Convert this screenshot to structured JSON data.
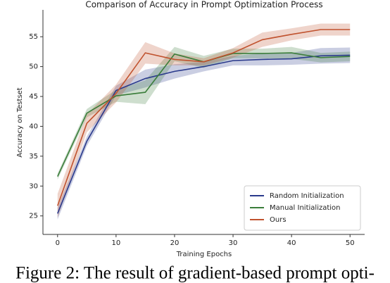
{
  "chart_data": {
    "type": "line",
    "title": "Comparison of Accuracy in Prompt Optimization Process",
    "x_label": "Training Epochs",
    "y_label": "Accuracy on Testset",
    "x": [
      0,
      5,
      10,
      15,
      20,
      25,
      30,
      35,
      40,
      45,
      50
    ],
    "series": [
      {
        "name": "Random Initialization",
        "color": "#2a3a8c",
        "values": [
          25.4,
          37.5,
          46,
          48,
          49.2,
          50,
          51,
          51.2,
          51.3,
          51.8,
          51.9
        ],
        "error": [
          1,
          0.8,
          0.8,
          1.5,
          1.2,
          0.8,
          0.8,
          1,
          1,
          1.3,
          1.3
        ]
      },
      {
        "name": "Manual Initialization",
        "color": "#3a7d3a",
        "values": [
          31.6,
          42.2,
          45.1,
          45.7,
          52.1,
          50.8,
          52.2,
          52.2,
          52.3,
          51.5,
          51.7
        ],
        "error": [
          0.5,
          0.7,
          1,
          2,
          1.2,
          1,
          0.8,
          0.8,
          1,
          0.8,
          0.8
        ]
      },
      {
        "name": "Ours",
        "color": "#c0522e",
        "values": [
          26.7,
          40.5,
          45.5,
          52.3,
          51.2,
          50.8,
          52.3,
          54.5,
          55.4,
          56.2,
          56.2
        ],
        "error": [
          2,
          1.5,
          1.5,
          1.8,
          1,
          0.6,
          0.8,
          1.2,
          1,
          1,
          1
        ]
      }
    ],
    "xlim": [
      -2.5,
      52.5
    ],
    "ylim": [
      21.9,
      59.5
    ],
    "xticks": [
      0,
      10,
      20,
      30,
      40,
      50
    ],
    "yticks": [
      25,
      30,
      35,
      40,
      45,
      50,
      55
    ],
    "grid": false,
    "legend": "lower right"
  },
  "caption": "Figure 2: The result of gradient-based prompt opti-"
}
